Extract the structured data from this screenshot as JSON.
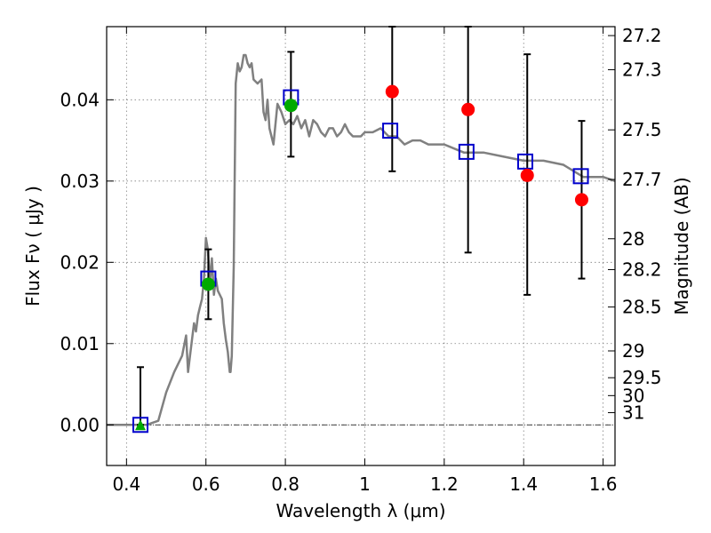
{
  "chart_data": {
    "type": "scatter",
    "xlabel": "Wavelength  λ (μm)",
    "ylabel": "Flux  Fν  ( μJy )",
    "y2label": "Magnitude (AB)",
    "xlim": [
      0.35,
      1.63
    ],
    "ylim": [
      -0.005,
      0.049
    ],
    "grid": true,
    "x_ticks": [
      {
        "value": 0.4,
        "label": "0.4"
      },
      {
        "value": 0.6,
        "label": "0.6"
      },
      {
        "value": 0.8,
        "label": "0.8"
      },
      {
        "value": 1.0,
        "label": "1"
      },
      {
        "value": 1.2,
        "label": "1.2"
      },
      {
        "value": 1.4,
        "label": "1.4"
      },
      {
        "value": 1.6,
        "label": "1.6"
      }
    ],
    "y_ticks": [
      {
        "value": 0.0,
        "label": "0.00"
      },
      {
        "value": 0.01,
        "label": "0.01"
      },
      {
        "value": 0.02,
        "label": "0.02"
      },
      {
        "value": 0.03,
        "label": "0.03"
      },
      {
        "value": 0.04,
        "label": "0.04"
      }
    ],
    "mag_ticks": [
      {
        "label": "27.2",
        "flux": 0.0479
      },
      {
        "label": "27.3",
        "flux": 0.0437
      },
      {
        "label": "27.5",
        "flux": 0.0363
      },
      {
        "label": "27.7",
        "flux": 0.0302
      },
      {
        "label": "28",
        "flux": 0.0229
      },
      {
        "label": "28.2",
        "flux": 0.0191
      },
      {
        "label": "28.5",
        "flux": 0.0145
      },
      {
        "label": "29",
        "flux": 0.0091
      },
      {
        "label": "29.5",
        "flux": 0.0058
      },
      {
        "label": "30",
        "flux": 0.0036
      },
      {
        "label": "31",
        "flux": 0.0015
      }
    ],
    "colors": {
      "sed": "#808080",
      "model": "#0000cc",
      "detection": "#00aa00",
      "nir": "#ff0000",
      "errorbar": "#000000",
      "grid": "#7f7f7f"
    },
    "model_sed": {
      "x": [
        0.35,
        0.45,
        0.48,
        0.5,
        0.52,
        0.54,
        0.55,
        0.555,
        0.56,
        0.57,
        0.575,
        0.58,
        0.585,
        0.59,
        0.595,
        0.6,
        0.605,
        0.61,
        0.615,
        0.62,
        0.625,
        0.63,
        0.64,
        0.645,
        0.65,
        0.655,
        0.66,
        0.662,
        0.665,
        0.67,
        0.675,
        0.68,
        0.685,
        0.69,
        0.695,
        0.7,
        0.705,
        0.71,
        0.715,
        0.72,
        0.73,
        0.74,
        0.745,
        0.75,
        0.755,
        0.76,
        0.77,
        0.78,
        0.79,
        0.8,
        0.81,
        0.82,
        0.83,
        0.84,
        0.85,
        0.86,
        0.87,
        0.88,
        0.89,
        0.9,
        0.91,
        0.92,
        0.93,
        0.94,
        0.95,
        0.96,
        0.97,
        0.98,
        0.99,
        1.0,
        1.02,
        1.04,
        1.06,
        1.08,
        1.1,
        1.12,
        1.14,
        1.16,
        1.18,
        1.2,
        1.25,
        1.3,
        1.35,
        1.4,
        1.45,
        1.5,
        1.55,
        1.6,
        1.63
      ],
      "y": [
        0.0,
        0.0,
        0.0005,
        0.004,
        0.0065,
        0.0085,
        0.011,
        0.0065,
        0.0085,
        0.0125,
        0.0115,
        0.0135,
        0.0145,
        0.0155,
        0.018,
        0.023,
        0.0215,
        0.0175,
        0.0205,
        0.016,
        0.018,
        0.0165,
        0.0155,
        0.0125,
        0.0105,
        0.009,
        0.0065,
        0.0065,
        0.0085,
        0.0195,
        0.042,
        0.0445,
        0.0435,
        0.044,
        0.0455,
        0.0455,
        0.0445,
        0.044,
        0.0445,
        0.0425,
        0.042,
        0.0425,
        0.0385,
        0.0375,
        0.04,
        0.0365,
        0.0345,
        0.0395,
        0.0385,
        0.037,
        0.0375,
        0.037,
        0.038,
        0.0365,
        0.0375,
        0.0355,
        0.0375,
        0.037,
        0.036,
        0.0355,
        0.0365,
        0.0365,
        0.0355,
        0.036,
        0.037,
        0.036,
        0.0355,
        0.0355,
        0.0355,
        0.036,
        0.036,
        0.0365,
        0.0355,
        0.0355,
        0.0345,
        0.035,
        0.035,
        0.0345,
        0.0345,
        0.0345,
        0.0335,
        0.0335,
        0.033,
        0.0325,
        0.0325,
        0.032,
        0.0305,
        0.0305,
        0.03
      ]
    },
    "model_points": {
      "x": [
        0.435,
        0.606,
        0.814,
        1.064,
        1.256,
        1.404,
        1.544
      ],
      "y": [
        0.0,
        0.018,
        0.0403,
        0.0362,
        0.0336,
        0.0324,
        0.0306
      ]
    },
    "detections": {
      "x": [
        0.606,
        0.814
      ],
      "y": [
        0.0173,
        0.0393
      ],
      "yerr_low": [
        0.013,
        0.033
      ],
      "yerr_high": [
        0.0216,
        0.0459
      ]
    },
    "upper_limit": {
      "x": 0.435,
      "y": 0.0,
      "yerr_low": 0.0,
      "yerr_high": 0.0071
    },
    "nir_points": {
      "x": [
        1.069,
        1.26,
        1.409,
        1.546
      ],
      "y": [
        0.041,
        0.0388,
        0.0307,
        0.0277
      ],
      "yerr_low": [
        0.0312,
        0.0212,
        0.016,
        0.018
      ],
      "yerr_high": [
        0.049,
        0.049,
        0.0456,
        0.0374
      ]
    }
  }
}
